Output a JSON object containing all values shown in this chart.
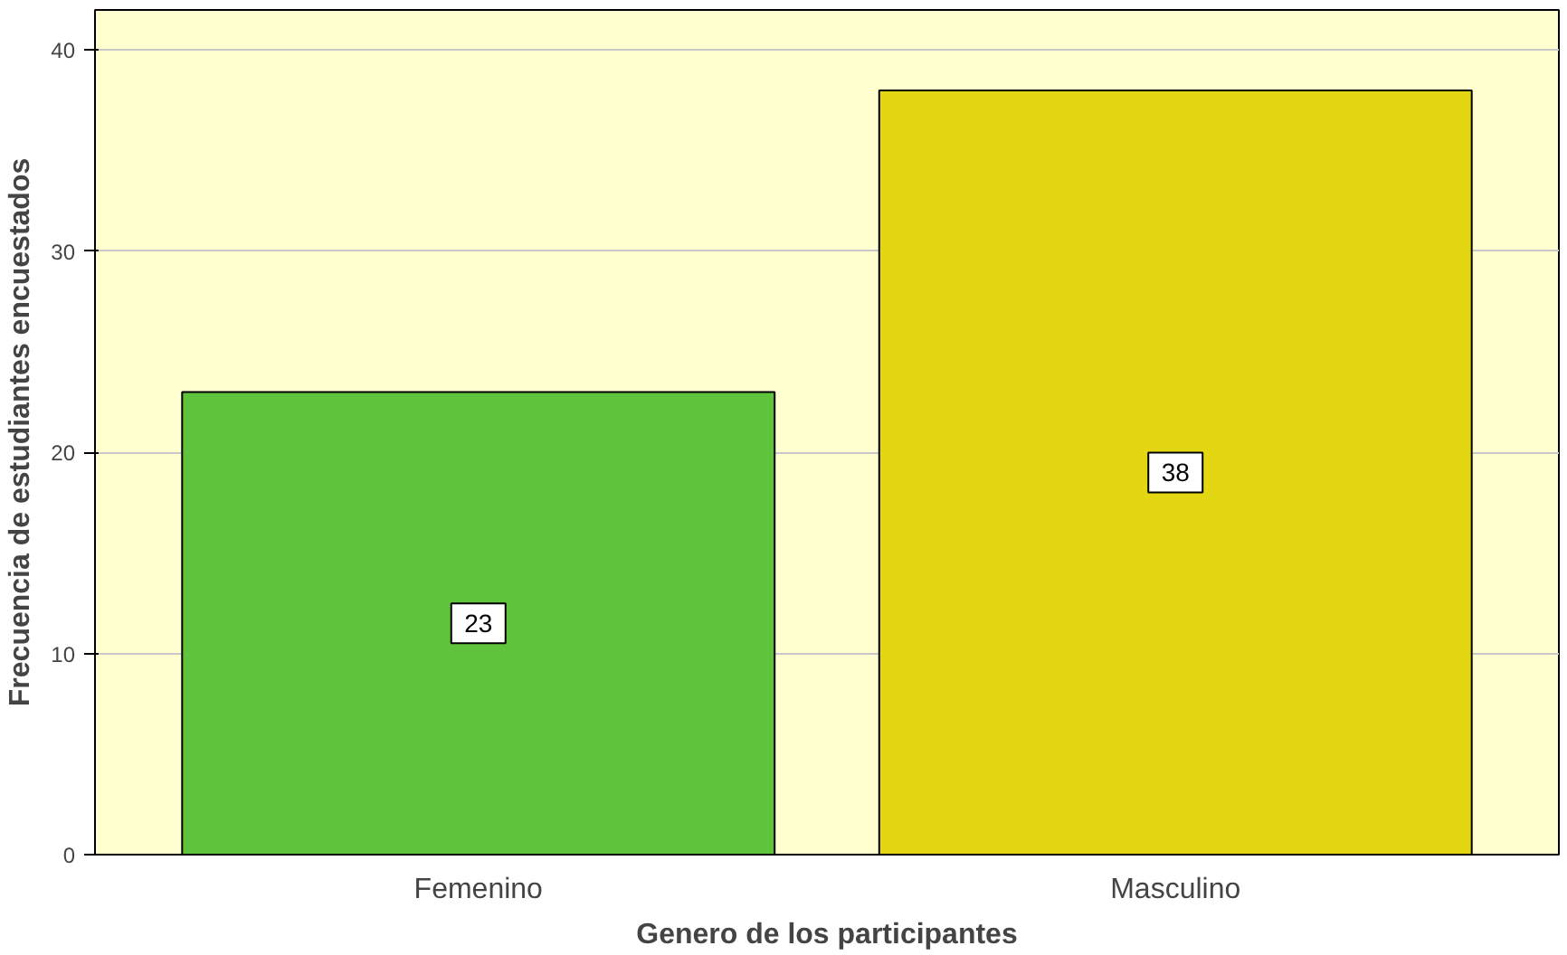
{
  "chart_data": {
    "type": "bar",
    "xlabel": "Genero de los participantes",
    "ylabel": "Frecuencia de estudiantes encuestados",
    "categories": [
      "Femenino",
      "Masculino"
    ],
    "values": [
      23,
      38
    ],
    "colors": [
      "#5fc43b",
      "#e2d712"
    ],
    "ylim": [
      0,
      42
    ],
    "yticks": [
      0,
      10,
      20,
      30,
      40
    ],
    "grid": "y",
    "data_labels": true
  }
}
